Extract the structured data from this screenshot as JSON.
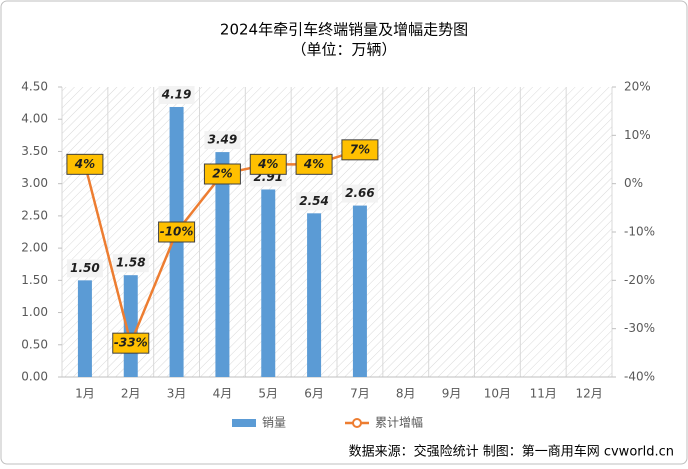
{
  "chart_data": {
    "type": "bar",
    "title": "2024年牵引车终端销量及增幅走势图",
    "subtitle": "（单位：万辆）",
    "categories": [
      "1月",
      "2月",
      "3月",
      "4月",
      "5月",
      "6月",
      "7月",
      "8月",
      "9月",
      "10月",
      "11月",
      "12月"
    ],
    "series": [
      {
        "name": "销量",
        "type": "bar",
        "color": "#5b9bd5",
        "values": [
          1.5,
          1.58,
          4.19,
          3.49,
          2.91,
          2.54,
          2.66,
          null,
          null,
          null,
          null,
          null
        ],
        "value_labels": [
          "1.50",
          "1.58",
          "4.19",
          "3.49",
          "2.91",
          "2.54",
          "2.66",
          null,
          null,
          null,
          null,
          null
        ]
      },
      {
        "name": "累计增幅",
        "type": "line",
        "axis": "y2",
        "color": "#ed7d31",
        "values": [
          4,
          -33,
          -10,
          2,
          4,
          4,
          7,
          null,
          null,
          null,
          null,
          null
        ],
        "value_labels": [
          "4%",
          "-33%",
          "-10%",
          "2%",
          "4%",
          "4%",
          "7%",
          null,
          null,
          null,
          null,
          null
        ]
      }
    ],
    "ylim": [
      0,
      4.5
    ],
    "yticks": [
      {
        "value": 0,
        "label": "0.00"
      },
      {
        "value": 0.5,
        "label": "0.50"
      },
      {
        "value": 1,
        "label": "1.00"
      },
      {
        "value": 1.5,
        "label": "1.50"
      },
      {
        "value": 2,
        "label": "2.00"
      },
      {
        "value": 2.5,
        "label": "2.50"
      },
      {
        "value": 3,
        "label": "3.00"
      },
      {
        "value": 3.5,
        "label": "3.50"
      },
      {
        "value": 4,
        "label": "4.00"
      },
      {
        "value": 4.5,
        "label": "4.50"
      }
    ],
    "y2lim": [
      -40,
      20
    ],
    "y2ticks": [
      {
        "value": -40,
        "label": "-40%"
      },
      {
        "value": -30,
        "label": "-30%"
      },
      {
        "value": -20,
        "label": "-20%"
      },
      {
        "value": -10,
        "label": "-10%"
      },
      {
        "value": 0,
        "label": "0%"
      },
      {
        "value": 10,
        "label": "10%"
      },
      {
        "value": 20,
        "label": "20%"
      }
    ],
    "source": "数据来源：交强险统计   制图：第一商用车网 cvworld.cn"
  }
}
